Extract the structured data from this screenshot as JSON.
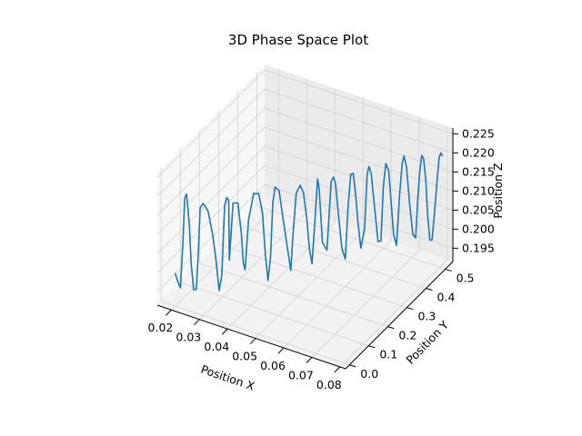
{
  "chart_data": {
    "type": "line3d",
    "title": "3D Phase Space Plot",
    "xlabel": "Position X",
    "ylabel": "Position Y",
    "zlabel": "Position Z",
    "xlim": [
      0.015,
      0.082
    ],
    "ylim": [
      -0.02,
      0.54
    ],
    "zlim": [
      0.1915,
      0.2265
    ],
    "xticks": [
      0.02,
      0.03,
      0.04,
      0.05,
      0.06,
      0.07,
      0.08
    ],
    "xtick_labels": [
      "0.02",
      "0.03",
      "0.04",
      "0.05",
      "0.06",
      "0.07",
      "0.08"
    ],
    "yticks": [
      0.0,
      0.1,
      0.2,
      0.3,
      0.4,
      0.5
    ],
    "ytick_labels": [
      "0.0",
      "0.1",
      "0.2",
      "0.3",
      "0.4",
      "0.5"
    ],
    "zticks": [
      0.195,
      0.2,
      0.205,
      0.21,
      0.215,
      0.22,
      0.225
    ],
    "ztick_labels": [
      "0.195",
      "0.200",
      "0.205",
      "0.210",
      "0.215",
      "0.220",
      "0.225"
    ],
    "grid": true,
    "color": "#1f77b4",
    "series": [
      {
        "x": [
          0.02,
          0.0204,
          0.0211,
          0.0216,
          0.0218,
          0.0221,
          0.0222,
          0.0224,
          0.0226,
          0.0231,
          0.0237,
          0.0241,
          0.0243,
          0.025,
          0.0263,
          0.0276,
          0.0284,
          0.0291,
          0.0297,
          0.0303,
          0.0307,
          0.031,
          0.0308,
          0.0318,
          0.0331,
          0.034,
          0.0343,
          0.0345,
          0.0354,
          0.0368,
          0.0382,
          0.0392,
          0.0398,
          0.0404,
          0.0409,
          0.0413,
          0.0418,
          0.0428,
          0.044,
          0.0452,
          0.0458,
          0.0462,
          0.047,
          0.048,
          0.0488,
          0.0496,
          0.0502,
          0.0507,
          0.0513,
          0.0519,
          0.0521,
          0.0529,
          0.0541,
          0.0552,
          0.0557,
          0.056,
          0.0566,
          0.0575,
          0.0583,
          0.0589,
          0.0595,
          0.06,
          0.0604,
          0.0609,
          0.0616,
          0.0625,
          0.063,
          0.0633,
          0.0637,
          0.0645,
          0.0654,
          0.066,
          0.0665,
          0.067,
          0.0676,
          0.0681,
          0.0686,
          0.0693,
          0.07,
          0.0705,
          0.0708,
          0.0713,
          0.072,
          0.0728,
          0.0734,
          0.0738,
          0.0741,
          0.0744,
          0.0747,
          0.0751,
          0.0754,
          0.0758,
          0.0762,
          0.0767,
          0.0772,
          0.0776,
          0.0778,
          0.0779
        ],
        "y": [
          0.0,
          0.006,
          0.011,
          0.017,
          0.023,
          0.028,
          0.034,
          0.039,
          0.045,
          0.051,
          0.056,
          0.062,
          0.067,
          0.073,
          0.079,
          0.084,
          0.09,
          0.096,
          0.101,
          0.107,
          0.112,
          0.118,
          0.124,
          0.129,
          0.135,
          0.14,
          0.146,
          0.152,
          0.157,
          0.163,
          0.169,
          0.174,
          0.18,
          0.185,
          0.191,
          0.197,
          0.202,
          0.208,
          0.213,
          0.219,
          0.225,
          0.23,
          0.236,
          0.242,
          0.247,
          0.253,
          0.258,
          0.264,
          0.27,
          0.275,
          0.281,
          0.286,
          0.292,
          0.298,
          0.303,
          0.309,
          0.315,
          0.32,
          0.326,
          0.331,
          0.337,
          0.343,
          0.348,
          0.354,
          0.359,
          0.365,
          0.371,
          0.376,
          0.382,
          0.388,
          0.393,
          0.399,
          0.404,
          0.41,
          0.416,
          0.421,
          0.427,
          0.432,
          0.438,
          0.444,
          0.449,
          0.455,
          0.461,
          0.466,
          0.472,
          0.477,
          0.483,
          0.489,
          0.494,
          0.5,
          0.505,
          0.511,
          0.517,
          0.522,
          0.528,
          0.533,
          0.539,
          0.545
        ],
        "z": [
          0.2,
          0.198,
          0.196,
          0.208,
          0.219,
          0.22,
          0.216,
          0.211,
          0.201,
          0.194,
          0.194,
          0.205,
          0.215,
          0.216,
          0.214,
          0.208,
          0.201,
          0.193,
          0.197,
          0.215,
          0.217,
          0.216,
          0.2,
          0.215,
          0.215,
          0.207,
          0.199,
          0.197,
          0.21,
          0.217,
          0.217,
          0.212,
          0.201,
          0.194,
          0.2,
          0.214,
          0.218,
          0.217,
          0.209,
          0.201,
          0.196,
          0.205,
          0.216,
          0.218,
          0.216,
          0.209,
          0.201,
          0.197,
          0.208,
          0.219,
          0.216,
          0.202,
          0.2,
          0.218,
          0.219,
          0.217,
          0.209,
          0.2,
          0.197,
          0.21,
          0.219,
          0.219,
          0.214,
          0.206,
          0.199,
          0.204,
          0.218,
          0.22,
          0.218,
          0.209,
          0.2,
          0.2,
          0.214,
          0.22,
          0.218,
          0.21,
          0.201,
          0.198,
          0.211,
          0.219,
          0.221,
          0.218,
          0.208,
          0.2,
          0.199,
          0.209,
          0.216,
          0.22,
          0.219,
          0.213,
          0.204,
          0.197,
          0.197,
          0.204,
          0.212,
          0.218,
          0.219,
          0.218
        ]
      }
    ]
  }
}
